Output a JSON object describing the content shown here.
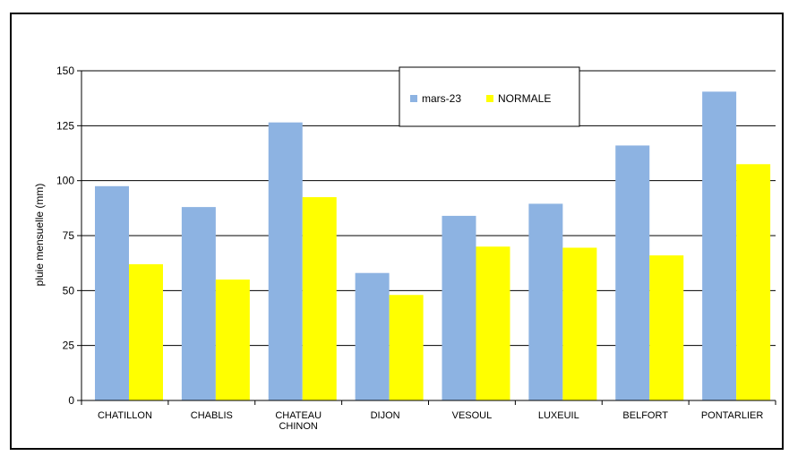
{
  "chart_data": {
    "type": "bar",
    "title": "",
    "xlabel": "",
    "ylabel": "pluie mensuelle (mm)",
    "ylim": [
      0,
      150
    ],
    "yticks": [
      0,
      25,
      50,
      75,
      100,
      125,
      150
    ],
    "grid": true,
    "legend_position": "top-right",
    "categories": [
      [
        "CHATILLON"
      ],
      [
        "CHABLIS"
      ],
      [
        "CHATEAU",
        "CHINON"
      ],
      [
        "DIJON"
      ],
      [
        "VESOUL"
      ],
      [
        "LUXEUIL"
      ],
      [
        "BELFORT"
      ],
      [
        "PONTARLIER"
      ]
    ],
    "series": [
      {
        "name": "mars-23",
        "color": "#8DB3E2",
        "values": [
          97.5,
          88,
          126.5,
          58,
          84,
          89.5,
          116,
          140.5
        ]
      },
      {
        "name": "NORMALE",
        "color": "#FFFF00",
        "values": [
          62,
          55,
          92.5,
          48,
          70,
          69.5,
          66,
          107.5
        ]
      }
    ]
  }
}
